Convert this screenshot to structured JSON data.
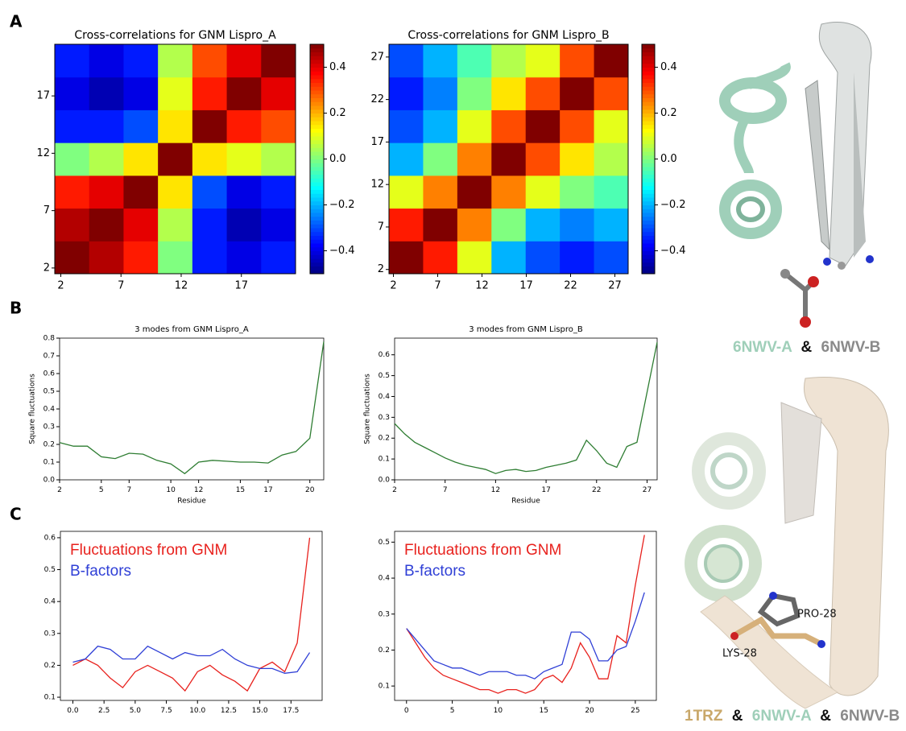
{
  "panel_labels": [
    "A",
    "B",
    "C"
  ],
  "chart_data": [
    {
      "type": "heatmap",
      "title": "Cross-correlations for GNM Lispro_A",
      "colormap": "jet",
      "xlim": [
        1.5,
        21.5
      ],
      "ylim": [
        1.5,
        21.5
      ],
      "xticks": [
        2,
        7,
        12,
        17
      ],
      "yticks": [
        2,
        7,
        12,
        17
      ],
      "clim": [
        -0.5,
        0.5
      ],
      "cticks": [
        0.4,
        0.2,
        {
          "value": 0,
          "label": "0.0"
        },
        {
          "value": -0.2,
          "label": "−0.2"
        },
        {
          "value": -0.4,
          "label": "−0.4"
        }
      ],
      "z": [
        [
          0.5,
          0.45,
          0.35,
          0.0,
          -0.35,
          -0.4,
          -0.35
        ],
        [
          0.45,
          0.5,
          0.4,
          0.05,
          -0.35,
          -0.45,
          -0.4
        ],
        [
          0.35,
          0.4,
          0.5,
          0.15,
          -0.3,
          -0.4,
          -0.35
        ],
        [
          0.0,
          0.05,
          0.15,
          0.5,
          0.15,
          0.1,
          0.05
        ],
        [
          -0.35,
          -0.35,
          -0.3,
          0.15,
          0.5,
          0.35,
          0.3
        ],
        [
          -0.4,
          -0.45,
          -0.4,
          0.1,
          0.35,
          0.5,
          0.4
        ],
        [
          -0.35,
          -0.4,
          -0.35,
          0.05,
          0.3,
          0.4,
          0.5
        ]
      ]
    },
    {
      "type": "heatmap",
      "title": "Cross-correlations for GNM Lispro_B",
      "colormap": "jet",
      "xlim": [
        1.5,
        28.5
      ],
      "ylim": [
        1.5,
        28.5
      ],
      "xticks": [
        2,
        7,
        12,
        17,
        22,
        27
      ],
      "yticks": [
        2,
        7,
        12,
        17,
        22,
        27
      ],
      "clim": [
        -0.5,
        0.5
      ],
      "cticks": [
        0.4,
        0.2,
        {
          "value": 0,
          "label": "0.0"
        },
        {
          "value": -0.2,
          "label": "−0.2"
        },
        {
          "value": -0.4,
          "label": "−0.4"
        }
      ],
      "z": [
        [
          0.5,
          0.35,
          0.1,
          -0.2,
          -0.3,
          -0.35,
          -0.3
        ],
        [
          0.35,
          0.5,
          0.25,
          0.0,
          -0.2,
          -0.25,
          -0.2
        ],
        [
          0.1,
          0.25,
          0.5,
          0.25,
          0.1,
          0.0,
          -0.05
        ],
        [
          -0.2,
          0.0,
          0.25,
          0.5,
          0.3,
          0.15,
          0.05
        ],
        [
          -0.3,
          -0.2,
          0.1,
          0.3,
          0.5,
          0.3,
          0.1
        ],
        [
          -0.35,
          -0.25,
          0.0,
          0.15,
          0.3,
          0.5,
          0.3
        ],
        [
          -0.3,
          -0.2,
          -0.05,
          0.05,
          0.1,
          0.3,
          0.5
        ]
      ]
    },
    {
      "type": "line",
      "title": "3 modes from GNM Lispro_A",
      "xlabel": "Residue",
      "ylabel": "Square fluctuations",
      "x": [
        2,
        3,
        4,
        5,
        6,
        7,
        8,
        9,
        10,
        11,
        12,
        13,
        14,
        15,
        16,
        17,
        18,
        19,
        20,
        21
      ],
      "values": [
        0.21,
        0.19,
        0.19,
        0.13,
        0.12,
        0.15,
        0.145,
        0.11,
        0.09,
        0.035,
        0.1,
        0.11,
        0.105,
        0.1,
        0.1,
        0.095,
        0.14,
        0.16,
        0.235,
        0.78
      ],
      "color": "#2e7d32",
      "xlim": [
        2,
        21
      ],
      "ylim": [
        0,
        0.8
      ],
      "xticks": [
        2,
        5,
        7,
        10,
        12,
        15,
        17,
        20
      ],
      "yticks": [
        {
          "value": 0,
          "label": "0.0"
        },
        0.1,
        0.2,
        0.3,
        0.4,
        0.5,
        0.6,
        0.7,
        0.8
      ]
    },
    {
      "type": "line",
      "title": "3 modes from GNM Lispro_B",
      "xlabel": "Residue",
      "ylabel": "Square fluctuations",
      "x": [
        2,
        3,
        4,
        5,
        6,
        7,
        8,
        9,
        10,
        11,
        12,
        13,
        14,
        15,
        16,
        17,
        18,
        19,
        20,
        21,
        22,
        23,
        24,
        25,
        26,
        27,
        28
      ],
      "values": [
        0.27,
        0.22,
        0.18,
        0.155,
        0.13,
        0.105,
        0.085,
        0.07,
        0.06,
        0.05,
        0.03,
        0.045,
        0.05,
        0.04,
        0.045,
        0.06,
        0.07,
        0.08,
        0.095,
        0.19,
        0.14,
        0.08,
        0.06,
        0.16,
        0.18,
        0.42,
        0.66
      ],
      "color": "#2e7d32",
      "xlim": [
        2,
        28
      ],
      "ylim": [
        0,
        0.68
      ],
      "xticks": [
        2,
        7,
        12,
        17,
        22,
        27
      ],
      "yticks": [
        {
          "value": 0,
          "label": "0.0"
        },
        0.1,
        0.2,
        0.3,
        0.4,
        0.5,
        0.6
      ]
    },
    {
      "type": "line",
      "legend": "upper left",
      "x": [
        0,
        1,
        2,
        3,
        4,
        5,
        6,
        7,
        8,
        9,
        10,
        11,
        12,
        13,
        14,
        15,
        16,
        17,
        18,
        19
      ],
      "series": [
        {
          "name": "Fluctuations from GNM",
          "color": "#e8211d",
          "values": [
            0.2,
            0.22,
            0.2,
            0.16,
            0.13,
            0.18,
            0.2,
            0.18,
            0.16,
            0.12,
            0.18,
            0.2,
            0.17,
            0.15,
            0.12,
            0.19,
            0.21,
            0.18,
            0.27,
            0.6
          ]
        },
        {
          "name": "B-factors",
          "color": "#2f3fd6",
          "values": [
            0.21,
            0.22,
            0.26,
            0.25,
            0.22,
            0.22,
            0.26,
            0.24,
            0.22,
            0.24,
            0.23,
            0.23,
            0.25,
            0.22,
            0.2,
            0.19,
            0.19,
            0.175,
            0.18,
            0.24
          ]
        }
      ],
      "xlim": [
        -1,
        20
      ],
      "ylim": [
        0.09,
        0.62
      ],
      "xticks": [
        {
          "value": 0,
          "label": "0.0"
        },
        2.5,
        {
          "value": 5,
          "label": "5.0"
        },
        7.5,
        {
          "value": 10,
          "label": "10.0"
        },
        12.5,
        {
          "value": 15,
          "label": "15.0"
        },
        17.5
      ],
      "yticks": [
        0.1,
        0.2,
        0.3,
        0.4,
        0.5,
        0.6
      ]
    },
    {
      "type": "line",
      "legend": "upper left",
      "x": [
        0,
        1,
        2,
        3,
        4,
        5,
        6,
        7,
        8,
        9,
        10,
        11,
        12,
        13,
        14,
        15,
        16,
        17,
        18,
        19,
        20,
        21,
        22,
        23,
        24,
        25,
        26
      ],
      "series": [
        {
          "name": "Fluctuations from GNM",
          "color": "#e8211d",
          "values": [
            0.26,
            0.22,
            0.18,
            0.15,
            0.13,
            0.12,
            0.11,
            0.1,
            0.09,
            0.09,
            0.08,
            0.09,
            0.09,
            0.08,
            0.09,
            0.12,
            0.13,
            0.11,
            0.15,
            0.22,
            0.18,
            0.12,
            0.12,
            0.24,
            0.22,
            0.38,
            0.52
          ]
        },
        {
          "name": "B-factors",
          "color": "#2f3fd6",
          "values": [
            0.26,
            0.23,
            0.2,
            0.17,
            0.16,
            0.15,
            0.15,
            0.14,
            0.13,
            0.14,
            0.14,
            0.14,
            0.13,
            0.13,
            0.12,
            0.14,
            0.15,
            0.16,
            0.25,
            0.25,
            0.23,
            0.17,
            0.17,
            0.2,
            0.21,
            0.28,
            0.36
          ]
        }
      ],
      "xlim": [
        -1.3,
        27.3
      ],
      "ylim": [
        0.06,
        0.53
      ],
      "xticks": [
        0,
        5,
        10,
        15,
        20,
        25
      ],
      "yticks": [
        0.1,
        0.2,
        0.3,
        0.4,
        0.5
      ]
    }
  ],
  "structures": {
    "top_caption": [
      "6NWV-A",
      "&",
      "6NWV-B"
    ],
    "bottom_caption": [
      "1TRZ",
      "&",
      "6NWV-A",
      "&",
      "6NWV-B"
    ],
    "residue_labels": [
      "PRO-28",
      "LYS-28"
    ]
  }
}
